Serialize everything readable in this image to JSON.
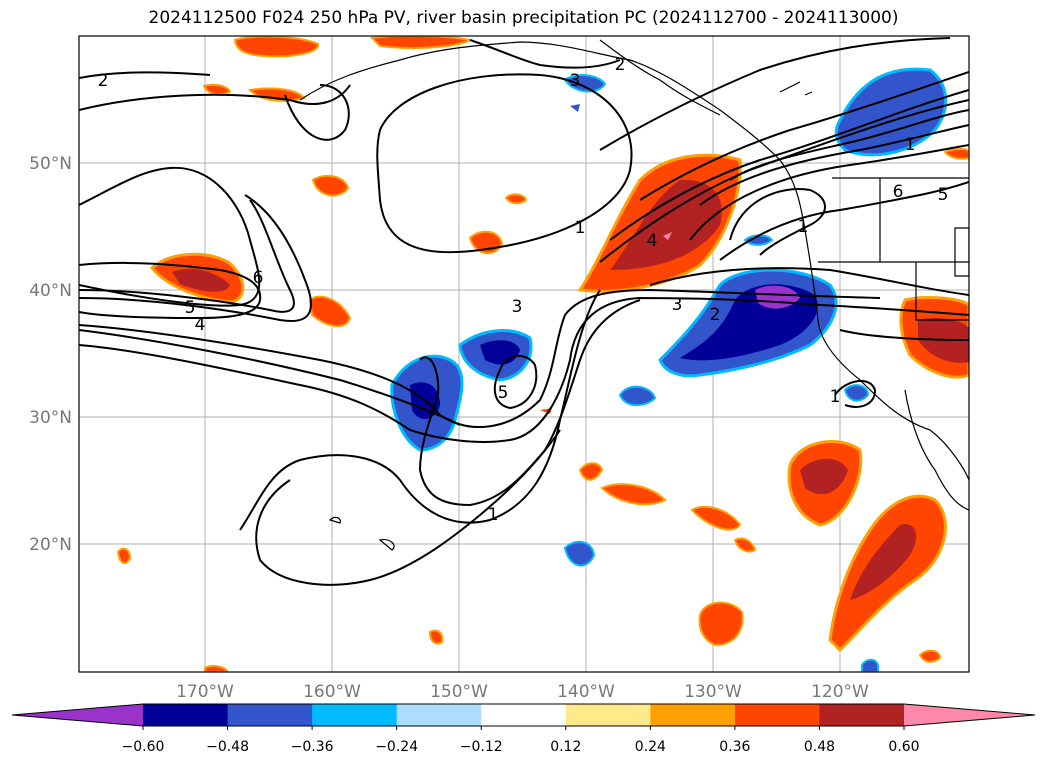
{
  "title": "2024112500 F024 250 hPa PV, river basin precipitation PC (2024112700 - 2024113000)",
  "map": {
    "lat_labels": [
      "50°N",
      "40°N",
      "30°N",
      "20°N"
    ],
    "lon_labels": [
      "170°W",
      "160°W",
      "150°W",
      "140°W",
      "130°W",
      "120°W"
    ],
    "contour_labels": [
      "2",
      "3",
      "2",
      "1",
      "6",
      "5",
      "4",
      "3",
      "3",
      "2",
      "1",
      "5",
      "1",
      "1",
      "6",
      "5",
      "1",
      "4"
    ]
  },
  "colorbar": {
    "colors": [
      "#9933cc",
      "#000099",
      "#3355cc",
      "#00bbff",
      "#aaddff",
      "#ffffff",
      "#ffe98a",
      "#ffa000",
      "#ff4500",
      "#b22222",
      "#ff88aa"
    ],
    "tick_labels": [
      "−0.60",
      "−0.48",
      "−0.36",
      "−0.24",
      "−0.12",
      "0.12",
      "0.24",
      "0.36",
      "0.48",
      "0.60"
    ]
  }
}
